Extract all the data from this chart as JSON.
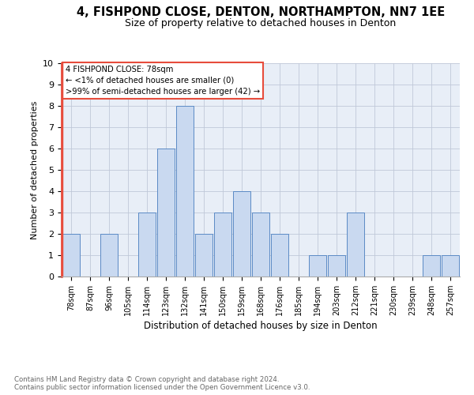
{
  "title1": "4, FISHPOND CLOSE, DENTON, NORTHAMPTON, NN7 1EE",
  "title2": "Size of property relative to detached houses in Denton",
  "xlabel": "Distribution of detached houses by size in Denton",
  "ylabel": "Number of detached properties",
  "categories": [
    "78sqm",
    "87sqm",
    "96sqm",
    "105sqm",
    "114sqm",
    "123sqm",
    "132sqm",
    "141sqm",
    "150sqm",
    "159sqm",
    "168sqm",
    "176sqm",
    "185sqm",
    "194sqm",
    "203sqm",
    "212sqm",
    "221sqm",
    "230sqm",
    "239sqm",
    "248sqm",
    "257sqm"
  ],
  "values": [
    2,
    0,
    2,
    0,
    3,
    6,
    8,
    2,
    3,
    4,
    3,
    2,
    0,
    1,
    1,
    3,
    0,
    0,
    0,
    1,
    1
  ],
  "bar_color": "#c9d9f0",
  "bar_edge_color": "#5b8ac5",
  "highlight_color": "#e74c3c",
  "ylim": [
    0,
    10
  ],
  "yticks": [
    0,
    1,
    2,
    3,
    4,
    5,
    6,
    7,
    8,
    9,
    10
  ],
  "annotation_text": "4 FISHPOND CLOSE: 78sqm\n← <1% of detached houses are smaller (0)\n>99% of semi-detached houses are larger (42) →",
  "footnote": "Contains HM Land Registry data © Crown copyright and database right 2024.\nContains public sector information licensed under the Open Government Licence v3.0.",
  "background_color": "#ffffff",
  "plot_bg_color": "#e8eef7",
  "grid_color": "#c0c8d8",
  "annotation_box_color": "#ffffff",
  "annotation_box_edge": "#e74c3c",
  "title1_fontsize": 10.5,
  "title2_fontsize": 9,
  "ylabel_fontsize": 8,
  "xtick_fontsize": 7,
  "ytick_fontsize": 8,
  "xlabel_fontsize": 8.5,
  "footnote_fontsize": 6.2
}
